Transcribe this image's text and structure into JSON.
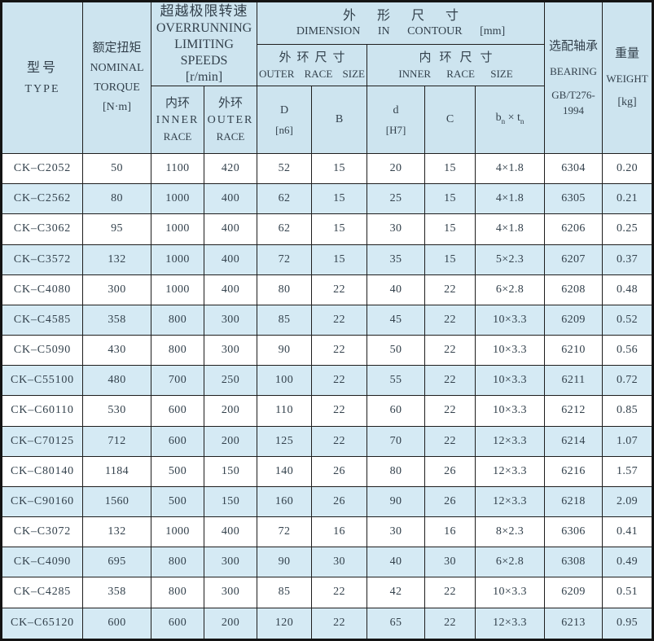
{
  "header": {
    "type": {
      "zh": "型号",
      "en": "TYPE"
    },
    "torque": {
      "zh": "额定扭矩",
      "en1": "NOMINAL",
      "en2": "TORQUE",
      "unit": "[N·m]"
    },
    "speeds": {
      "zh": "超越极限转速",
      "en1": "OVERRUNNING",
      "en2": "LIMITING SPEEDS",
      "unit": "[r/min]"
    },
    "dimension": {
      "zh": "外形尺寸",
      "en": "DIMENSION IN CONTOUR [mm]"
    },
    "outer_race_size": {
      "zh": "外环尺寸",
      "en": "OUTER RACE SIZE"
    },
    "inner_race_size": {
      "zh": "内环尺寸",
      "en": "INNER RACE SIZE"
    },
    "inner_race": {
      "zh": "内环",
      "en1": "INNER",
      "en2": "RACE"
    },
    "outer_race": {
      "zh": "外环",
      "en1": "OUTER",
      "en2": "RACE"
    },
    "col_D": {
      "line1": "D",
      "line2": "[n6]"
    },
    "col_B": "B",
    "col_d": {
      "line1": "d",
      "line2": "[H7]"
    },
    "col_C": "C",
    "col_bt": {
      "b": "b",
      "sub1": "n",
      "times": " × ",
      "t": "t",
      "sub2": "n"
    },
    "bearing": {
      "zh": "选配轴承",
      "en": "BEARING",
      "std": "GB/T276-1994"
    },
    "weight": {
      "zh": "重量",
      "en": "WEIGHT",
      "unit": "[kg]"
    }
  },
  "table": {
    "column_keys": [
      "type",
      "nominal-torque",
      "inner-race-speed",
      "outer-race-speed",
      "outer-diameter-D",
      "width-B",
      "bore-d",
      "width-C",
      "keyway-bt",
      "bearing",
      "weight"
    ],
    "rows": [
      [
        "CK–C2052",
        "50",
        "1100",
        "420",
        "52",
        "15",
        "20",
        "15",
        "4×1.8",
        "6304",
        "0.20"
      ],
      [
        "CK–C2562",
        "80",
        "1000",
        "400",
        "62",
        "15",
        "25",
        "15",
        "4×1.8",
        "6305",
        "0.21"
      ],
      [
        "CK–C3062",
        "95",
        "1000",
        "400",
        "62",
        "15",
        "30",
        "15",
        "4×1.8",
        "6206",
        "0.25"
      ],
      [
        "CK–C3572",
        "132",
        "1000",
        "400",
        "72",
        "15",
        "35",
        "15",
        "5×2.3",
        "6207",
        "0.37"
      ],
      [
        "CK–C4080",
        "300",
        "1000",
        "400",
        "80",
        "22",
        "40",
        "22",
        "6×2.8",
        "6208",
        "0.48"
      ],
      [
        "CK–C4585",
        "358",
        "800",
        "300",
        "85",
        "22",
        "45",
        "22",
        "10×3.3",
        "6209",
        "0.52"
      ],
      [
        "CK–C5090",
        "430",
        "800",
        "300",
        "90",
        "22",
        "50",
        "22",
        "10×3.3",
        "6210",
        "0.56"
      ],
      [
        "CK–C55100",
        "480",
        "700",
        "250",
        "100",
        "22",
        "55",
        "22",
        "10×3.3",
        "6211",
        "0.72"
      ],
      [
        "CK–C60110",
        "530",
        "600",
        "200",
        "110",
        "22",
        "60",
        "22",
        "10×3.3",
        "6212",
        "0.85"
      ],
      [
        "CK–C70125",
        "712",
        "600",
        "200",
        "125",
        "22",
        "70",
        "22",
        "12×3.3",
        "6214",
        "1.07"
      ],
      [
        "CK–C80140",
        "1184",
        "500",
        "150",
        "140",
        "26",
        "80",
        "26",
        "12×3.3",
        "6216",
        "1.57"
      ],
      [
        "CK–C90160",
        "1560",
        "500",
        "150",
        "160",
        "26",
        "90",
        "26",
        "12×3.3",
        "6218",
        "2.09"
      ],
      [
        "CK–C3072",
        "132",
        "1000",
        "400",
        "72",
        "16",
        "30",
        "16",
        "8×2.3",
        "6306",
        "0.41"
      ],
      [
        "CK–C4090",
        "695",
        "800",
        "300",
        "90",
        "30",
        "40",
        "30",
        "6×2.8",
        "6308",
        "0.49"
      ],
      [
        "CK–C4285",
        "358",
        "800",
        "300",
        "85",
        "22",
        "42",
        "22",
        "10×3.3",
        "6209",
        "0.51"
      ],
      [
        "CK–C65120",
        "600",
        "600",
        "200",
        "120",
        "22",
        "65",
        "22",
        "12×3.3",
        "6213",
        "0.95"
      ]
    ]
  },
  "colors": {
    "header_bg": "#cde4ef",
    "row_alt_bg": "#d5eaf4",
    "border": "#1e1e1e",
    "text": "#33414c"
  }
}
